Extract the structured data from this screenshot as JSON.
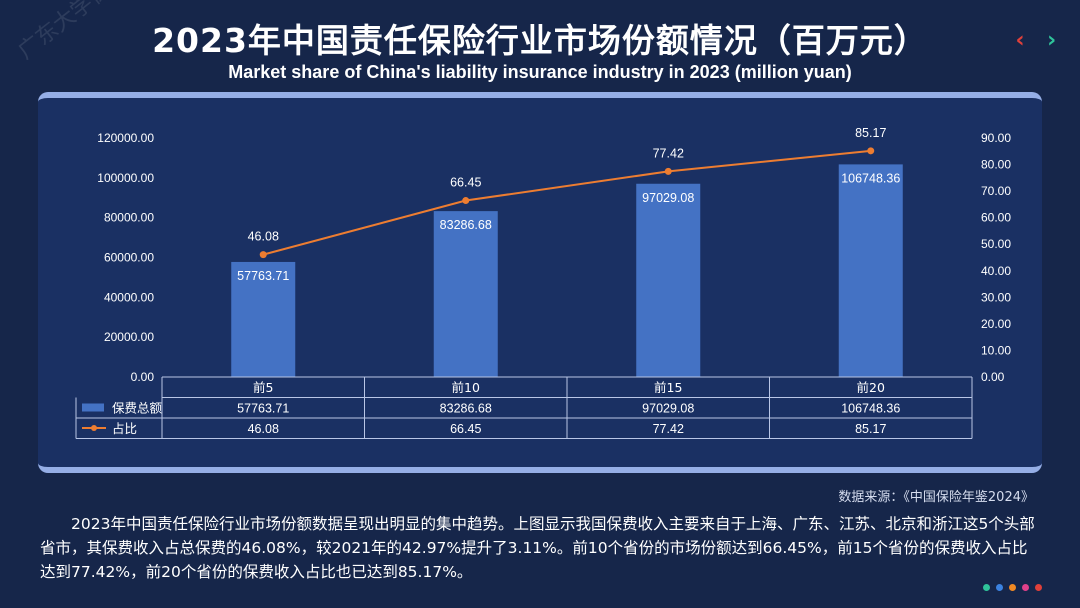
{
  "header": {
    "title": "2023年中国责任保险行业市场份额情况（百万元）",
    "subtitle": "Market share of China's liability insurance industry in 2023 (million yuan)",
    "prev_arrow": "‹",
    "next_arrow": "›"
  },
  "watermark": "广东大学保险研究",
  "chart_data": {
    "type": "bar+line",
    "categories": [
      "前5",
      "前10",
      "前15",
      "前20"
    ],
    "series": [
      {
        "name": "保费总额",
        "type": "bar",
        "axis": "left",
        "values": [
          57763.71,
          83286.68,
          97029.08,
          106748.36
        ],
        "labels": [
          "57763.71",
          "83286.68",
          "97029.08",
          "106748.36"
        ],
        "color": "#4472c4"
      },
      {
        "name": "占比",
        "type": "line",
        "axis": "right",
        "values": [
          46.08,
          66.45,
          77.42,
          85.17
        ],
        "labels": [
          "46.08",
          "66.45",
          "77.42",
          "85.17"
        ],
        "color": "#ed7d31"
      }
    ],
    "y_left": {
      "min": 0,
      "max": 120000,
      "step": 20000,
      "tick_labels": [
        "0.00",
        "20000.00",
        "40000.00",
        "60000.00",
        "80000.00",
        "100000.00",
        "120000.00"
      ]
    },
    "y_right": {
      "min": 0,
      "max": 90,
      "step": 10,
      "tick_labels": [
        "0.00",
        "10.00",
        "20.00",
        "30.00",
        "40.00",
        "50.00",
        "60.00",
        "70.00",
        "80.00",
        "90.00"
      ]
    },
    "data_table": true,
    "grid": false
  },
  "footer": {
    "source": "数据来源：《中国保险年鉴2024》",
    "description": "2023年中国责任保险行业市场份额数据呈现出明显的集中趋势。上图显示我国保费收入主要来自于上海、广东、江苏、北京和浙江这5个头部省市，其保费收入占总保费的46.08%，较2021年的42.97%提升了3.11%。前10个省份的市场份额达到66.45%，前15个省份的保费收入占比达到77.42%，前20个省份的保费收入占比也已达到85.17%。"
  },
  "colors": {
    "background": "#16264a",
    "panel": "#1a3063",
    "dots": [
      "#2fc39a",
      "#3b82e0",
      "#f08a24",
      "#e0408a",
      "#e0403a"
    ]
  }
}
